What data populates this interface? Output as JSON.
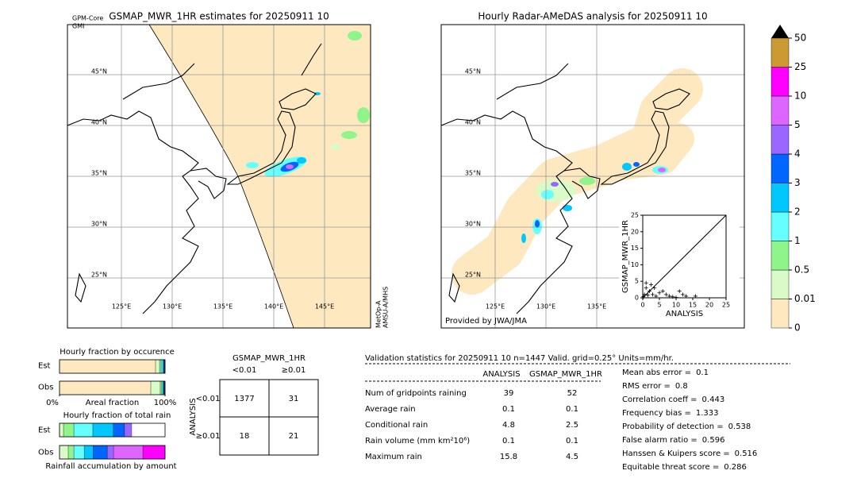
{
  "left_map": {
    "title": "GSMAP_MWR_1HR estimates for 20250911 10",
    "sensor_top": [
      "GPM-Core",
      "GMI"
    ],
    "sensor_side": [
      "MetOp-A",
      "AMSU-A/MHS"
    ],
    "lat_labels": [
      "45°N",
      "40°N",
      "35°N",
      "30°N",
      "25°N"
    ],
    "lon_labels": [
      "125°E",
      "130°E",
      "135°E",
      "140°E",
      "145°E"
    ]
  },
  "right_map": {
    "title": "Hourly Radar-AMeDAS analysis for 20250911 10",
    "credit": "Provided by JWA/JMA",
    "lat_labels": [
      "45°N",
      "40°N",
      "35°N",
      "30°N",
      "25°N"
    ],
    "lon_labels": [
      "125°E",
      "130°E",
      "135°E"
    ]
  },
  "colorbar": {
    "ticks": [
      0,
      0.01,
      0.5,
      1,
      2,
      3,
      4,
      5,
      10,
      25,
      50
    ],
    "colors": [
      "#fde8c0",
      "#d8fbc8",
      "#8ff58a",
      "#66ffff",
      "#00c8ff",
      "#0066ff",
      "#9966ff",
      "#dd66ff",
      "#ff00ff",
      "#cc9933"
    ],
    "extend_color": "#000000"
  },
  "chart_data": [
    {
      "type": "scatter",
      "xlabel": "ANALYSIS",
      "ylabel": "GSMAP_MWR_1HR",
      "xlim": [
        0,
        25
      ],
      "ylim": [
        0,
        25
      ],
      "xticks": [
        0,
        5,
        10,
        15,
        20,
        25
      ],
      "yticks": [
        0,
        5,
        10,
        15,
        20,
        25
      ],
      "color": "#000000",
      "x": [
        0.2,
        0.5,
        1,
        1,
        1.5,
        2,
        2.5,
        3,
        3.5,
        4,
        5,
        6,
        7,
        8,
        9,
        10,
        11,
        12,
        13,
        15.8
      ],
      "y": [
        0.3,
        1,
        3,
        4.5,
        0.8,
        2,
        4,
        1,
        3,
        0.5,
        1.5,
        2,
        1,
        0.5,
        0.3,
        0.1,
        2,
        1,
        0.5,
        0.5
      ]
    },
    {
      "type": "stacked-hbar",
      "title": "Hourly fraction by occurence",
      "categories": [
        "Est",
        "Obs"
      ],
      "xlabel": "Areal fraction",
      "xlim": [
        0,
        100
      ],
      "xticks": [
        {
          "value": 0,
          "label": "0%"
        },
        {
          "value": 100,
          "label": "100%"
        }
      ],
      "series": [
        {
          "color": "#fde8c0",
          "values": [
            91,
            86.5
          ]
        },
        {
          "color": "#d8fbc8",
          "values": [
            3.8,
            9
          ]
        },
        {
          "color": "#8ff58a",
          "values": [
            1.5,
            1.5
          ]
        },
        {
          "color": "#66ffff",
          "values": [
            1.5,
            1
          ]
        },
        {
          "color": "#00c8ff",
          "values": [
            1,
            0.8
          ]
        },
        {
          "color": "#0066ff",
          "values": [
            0.6,
            0.6
          ]
        },
        {
          "color": "#9966ff",
          "values": [
            0.3,
            0.3
          ]
        },
        {
          "color": "#dd66ff",
          "values": [
            0.2,
            0.2
          ]
        },
        {
          "color": "#ff00ff",
          "values": [
            0.1,
            0.1
          ]
        }
      ]
    },
    {
      "type": "stacked-hbar",
      "title": "Hourly fraction of total rain",
      "categories": [
        "Est",
        "Obs"
      ],
      "xlabel": "Rainfall accumulation by amount",
      "xlim": [
        0,
        100
      ],
      "series": [
        {
          "color": "#d8fbc8",
          "values": [
            3.8,
            8.3
          ]
        },
        {
          "color": "#8ff58a",
          "values": [
            9.8,
            5.3
          ]
        },
        {
          "color": "#66ffff",
          "values": [
            18,
            9.8
          ]
        },
        {
          "color": "#00c8ff",
          "values": [
            19.5,
            8.3
          ]
        },
        {
          "color": "#0066ff",
          "values": [
            10.5,
            13.5
          ]
        },
        {
          "color": "#9966ff",
          "values": [
            6.8,
            6
          ]
        },
        {
          "color": "#dd66ff",
          "values": [
            0,
            27.8
          ]
        },
        {
          "color": "#ff00ff",
          "values": [
            0,
            21
          ]
        }
      ]
    }
  ],
  "contingency": {
    "title": "GSMAP_MWR_1HR",
    "row_title": "ANALYSIS",
    "columns": [
      "<0.01",
      "≥0.01"
    ],
    "rows": [
      "<0.01",
      "≥0.01"
    ],
    "cells": [
      [
        1377,
        31
      ],
      [
        18,
        21
      ]
    ]
  },
  "validation": {
    "header": "Validation statistics for 20250911 10  n=1447 Valid. grid=0.25° Units=mm/hr.",
    "columns": [
      "ANALYSIS",
      "GSMAP_MWR_1HR"
    ],
    "rows": [
      {
        "label": "Num of gridpoints raining",
        "values": [
          39,
          52
        ]
      },
      {
        "label": "Average rain",
        "values": [
          0.1,
          0.1
        ]
      },
      {
        "label": "Conditional rain",
        "values": [
          4.8,
          2.5
        ]
      },
      {
        "label": "Rain volume (mm km²10⁶)",
        "values": [
          0.1,
          0.1
        ]
      },
      {
        "label": "Maximum rain",
        "values": [
          15.8,
          4.5
        ]
      }
    ],
    "scores": [
      {
        "label": "Mean abs error =",
        "value": 0.1
      },
      {
        "label": "RMS error =",
        "value": 0.8
      },
      {
        "label": "Correlation coeff =",
        "value": 0.443
      },
      {
        "label": "Frequency bias =",
        "value": 1.333
      },
      {
        "label": "Probability of detection =",
        "value": 0.538
      },
      {
        "label": "False alarm ratio =",
        "value": 0.596
      },
      {
        "label": "Hanssen & Kuipers score =",
        "value": 0.516
      },
      {
        "label": "Equitable threat score =",
        "value": 0.286
      }
    ]
  }
}
